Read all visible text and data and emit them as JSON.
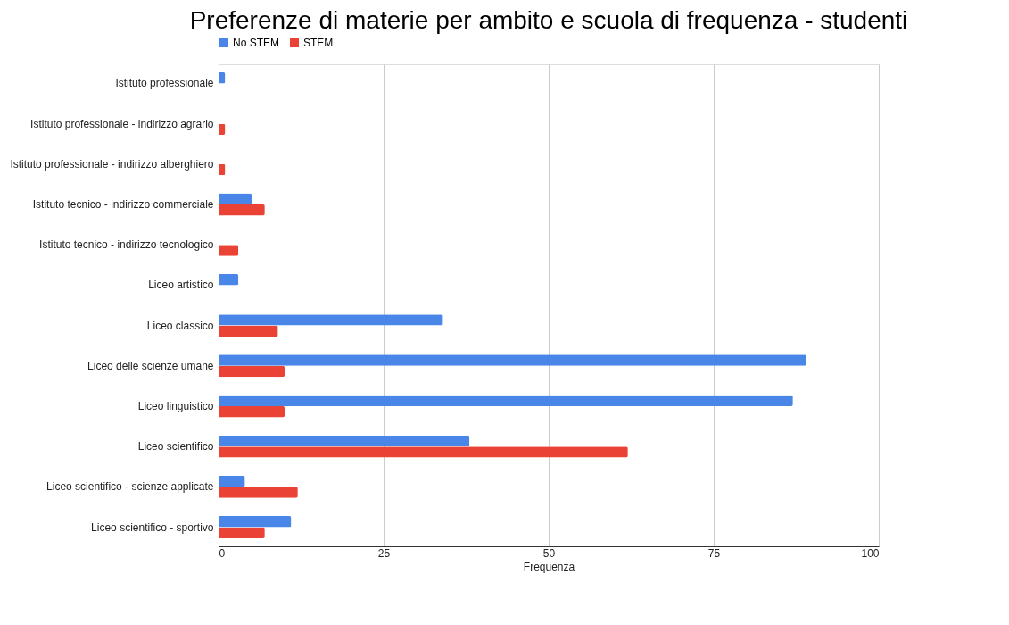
{
  "chart_data": {
    "type": "bar",
    "orientation": "horizontal",
    "title": "Preferenze di materie per ambito e scuola di frequenza - studenti",
    "xlabel": "Frequenza",
    "categories": [
      "Istituto professionale",
      "Istituto professionale - indirizzo agrario",
      "Istituto professionale - indirizzo alberghiero",
      "Istituto tecnico - indirizzo commerciale",
      "Istituto tecnico - indirizzo tecnologico",
      "Liceo artistico",
      "Liceo classico",
      "Liceo delle scienze umane",
      "Liceo linguistico",
      "Liceo scientifico",
      "Liceo scientifico - scienze applicate",
      "Liceo scientifico - sportivo"
    ],
    "series": [
      {
        "name": "No STEM",
        "color": "#4a86e8",
        "values": [
          1,
          null,
          null,
          5,
          null,
          3,
          34,
          89,
          87,
          38,
          4,
          11
        ]
      },
      {
        "name": "STEM",
        "color": "#ea4335",
        "values": [
          null,
          1,
          1,
          7,
          3,
          null,
          9,
          10,
          10,
          62,
          12,
          7
        ]
      }
    ],
    "xlim": [
      0,
      100
    ],
    "xticks": [
      0,
      25,
      50,
      75,
      100
    ],
    "grid": "x",
    "legend": "top"
  }
}
